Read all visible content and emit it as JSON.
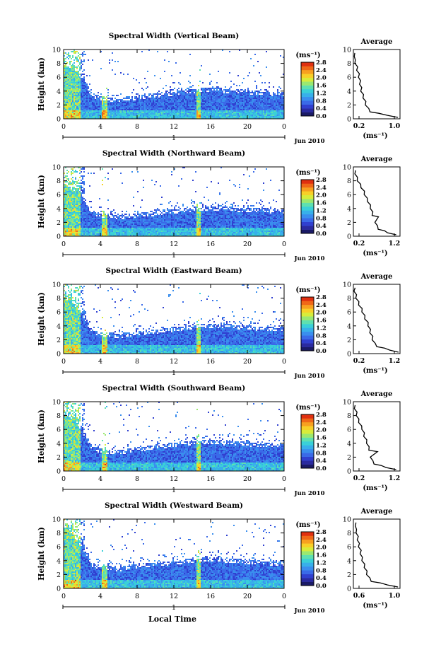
{
  "figure": {
    "x_title": "Local Time",
    "date_label": "Jun 2010",
    "colorbar_unit": "(ms⁻¹)",
    "profile_unit": "(ms⁻¹)",
    "colors": {
      "background": "#ffffff",
      "colormap": [
        "#1a1a66",
        "#2a2aa0",
        "#3040d0",
        "#3a6ae8",
        "#3a8eee",
        "#38b0ea",
        "#3ad0d8",
        "#5ee0b0",
        "#9ae870",
        "#d8ec3a",
        "#f8d028",
        "#f8a020",
        "#f06818",
        "#e03010"
      ]
    }
  },
  "chart_data": [
    {
      "type": "heatmap",
      "title": "Spectral Width (Vertical Beam)",
      "xlabel": "",
      "ylabel": "Height (km)",
      "xlim": [
        0,
        24
      ],
      "ylim": [
        0,
        10
      ],
      "x_ticks": [
        "0",
        "4",
        "8",
        "12",
        "16",
        "20",
        "0"
      ],
      "y_ticks": [
        "0",
        "2",
        "4",
        "6",
        "8",
        "10"
      ],
      "day_label": "1",
      "colorbar_ticks": [
        "0.0",
        "0.4",
        "0.8",
        "1.2",
        "1.6",
        "2.0",
        "2.4",
        "2.8"
      ],
      "echo_top_km": [
        [
          0,
          8.4
        ],
        [
          1,
          7.6
        ],
        [
          2,
          6.4
        ],
        [
          3,
          3.7
        ],
        [
          4,
          3.2
        ],
        [
          6,
          3.0
        ],
        [
          8,
          3.4
        ],
        [
          10,
          3.7
        ],
        [
          12,
          4.0
        ],
        [
          14,
          4.3
        ],
        [
          16,
          4.5
        ],
        [
          18,
          4.3
        ],
        [
          20,
          4.2
        ],
        [
          22,
          4.0
        ],
        [
          24,
          3.8
        ]
      ],
      "profile": {
        "title": "Average",
        "xlabel": "(ms⁻¹)",
        "ylabel": "",
        "xlim": [
          0.2,
          1.0
        ],
        "x_ticks": [
          "0.2",
          "1.0"
        ],
        "y_ticks": [
          "0",
          "2",
          "4",
          "6",
          "8",
          "10"
        ],
        "ylim": [
          0,
          10
        ],
        "points": [
          [
            0.95,
            0.2
          ],
          [
            0.8,
            0.5
          ],
          [
            0.62,
            0.8
          ],
          [
            0.5,
            1.0
          ],
          [
            0.45,
            1.5
          ],
          [
            0.42,
            2.0
          ],
          [
            0.4,
            2.5
          ],
          [
            0.38,
            3.0
          ],
          [
            0.36,
            3.5
          ],
          [
            0.34,
            4.0
          ],
          [
            0.33,
            4.5
          ],
          [
            0.32,
            5.0
          ],
          [
            0.31,
            5.5
          ],
          [
            0.3,
            6.0
          ],
          [
            0.29,
            6.5
          ],
          [
            0.27,
            7.0
          ],
          [
            0.26,
            7.5
          ],
          [
            0.24,
            8.0
          ],
          [
            0.22,
            8.5
          ],
          [
            0.23,
            9.0
          ],
          [
            0.21,
            9.5
          ]
        ]
      }
    },
    {
      "type": "heatmap",
      "title": "Spectral Width (Northward Beam)",
      "xlabel": "",
      "ylabel": "Height (km)",
      "xlim": [
        0,
        24
      ],
      "ylim": [
        0,
        10
      ],
      "x_ticks": [
        "0",
        "4",
        "8",
        "12",
        "16",
        "20",
        "0"
      ],
      "y_ticks": [
        "0",
        "2",
        "4",
        "6",
        "8",
        "10"
      ],
      "day_label": "1",
      "colorbar_ticks": [
        "0.0",
        "0.4",
        "0.8",
        "1.2",
        "1.6",
        "2.0",
        "2.4",
        "2.8"
      ],
      "echo_top_km": [
        [
          0,
          8.2
        ],
        [
          1,
          7.2
        ],
        [
          2,
          6.0
        ],
        [
          3,
          3.6
        ],
        [
          4,
          3.3
        ],
        [
          6,
          3.1
        ],
        [
          8,
          3.3
        ],
        [
          10,
          3.6
        ],
        [
          12,
          3.9
        ],
        [
          14,
          4.2
        ],
        [
          16,
          4.4
        ],
        [
          18,
          4.2
        ],
        [
          20,
          4.1
        ],
        [
          22,
          4.0
        ],
        [
          24,
          3.8
        ]
      ],
      "profile": {
        "title": "Average",
        "xlabel": "(ms⁻¹)",
        "ylabel": "",
        "xlim": [
          0.2,
          1.2
        ],
        "x_ticks": [
          "0.2",
          "1.2"
        ],
        "y_ticks": [
          "0",
          "2",
          "4",
          "6",
          "8",
          "10"
        ],
        "ylim": [
          0,
          10
        ],
        "points": [
          [
            1.1,
            0.2
          ],
          [
            0.95,
            0.5
          ],
          [
            0.85,
            0.8
          ],
          [
            0.75,
            1.0
          ],
          [
            0.7,
            1.5
          ],
          [
            0.68,
            2.0
          ],
          [
            0.72,
            2.8
          ],
          [
            0.62,
            3.0
          ],
          [
            0.6,
            3.5
          ],
          [
            0.58,
            4.0
          ],
          [
            0.55,
            4.5
          ],
          [
            0.52,
            5.0
          ],
          [
            0.48,
            5.5
          ],
          [
            0.45,
            6.0
          ],
          [
            0.42,
            6.5
          ],
          [
            0.38,
            7.0
          ],
          [
            0.34,
            7.5
          ],
          [
            0.3,
            8.0
          ],
          [
            0.27,
            8.5
          ],
          [
            0.25,
            9.0
          ],
          [
            0.23,
            9.5
          ]
        ]
      }
    },
    {
      "type": "heatmap",
      "title": "Spectral Width (Eastward Beam)",
      "xlabel": "",
      "ylabel": "Height (km)",
      "xlim": [
        0,
        24
      ],
      "ylim": [
        0,
        10
      ],
      "x_ticks": [
        "0",
        "4",
        "8",
        "12",
        "16",
        "20",
        "0"
      ],
      "y_ticks": [
        "0",
        "2",
        "4",
        "6",
        "8",
        "10"
      ],
      "day_label": "1",
      "colorbar_ticks": [
        "0.0",
        "0.4",
        "0.8",
        "1.2",
        "1.6",
        "2.0",
        "2.4",
        "2.8"
      ],
      "echo_top_km": [
        [
          0,
          8.6
        ],
        [
          1,
          7.8
        ],
        [
          2,
          6.0
        ],
        [
          3,
          3.5
        ],
        [
          4,
          3.1
        ],
        [
          6,
          2.9
        ],
        [
          8,
          3.2
        ],
        [
          10,
          3.5
        ],
        [
          12,
          3.8
        ],
        [
          14,
          4.1
        ],
        [
          16,
          4.3
        ],
        [
          18,
          4.2
        ],
        [
          20,
          4.0
        ],
        [
          22,
          3.9
        ],
        [
          24,
          3.8
        ]
      ],
      "profile": {
        "title": "Average",
        "xlabel": "(ms⁻¹)",
        "ylabel": "",
        "xlim": [
          0.2,
          1.2
        ],
        "x_ticks": [
          "0.2",
          "1.2"
        ],
        "y_ticks": [
          "0",
          "2",
          "4",
          "6",
          "8",
          "10"
        ],
        "ylim": [
          0,
          10
        ],
        "points": [
          [
            1.15,
            0.2
          ],
          [
            1.0,
            0.5
          ],
          [
            0.85,
            0.8
          ],
          [
            0.72,
            1.0
          ],
          [
            0.65,
            1.5
          ],
          [
            0.62,
            2.0
          ],
          [
            0.6,
            2.5
          ],
          [
            0.57,
            3.0
          ],
          [
            0.55,
            3.5
          ],
          [
            0.53,
            4.0
          ],
          [
            0.5,
            4.5
          ],
          [
            0.46,
            5.0
          ],
          [
            0.43,
            5.5
          ],
          [
            0.4,
            6.0
          ],
          [
            0.37,
            6.5
          ],
          [
            0.33,
            7.0
          ],
          [
            0.3,
            7.5
          ],
          [
            0.27,
            8.0
          ],
          [
            0.25,
            8.5
          ],
          [
            0.23,
            9.0
          ],
          [
            0.22,
            9.5
          ]
        ]
      }
    },
    {
      "type": "heatmap",
      "title": "Spectral Width (Southward Beam)",
      "xlabel": "",
      "ylabel": "Height (km)",
      "xlim": [
        0,
        24
      ],
      "ylim": [
        0,
        10
      ],
      "x_ticks": [
        "0",
        "4",
        "8",
        "12",
        "16",
        "20",
        "0"
      ],
      "y_ticks": [
        "0",
        "2",
        "4",
        "6",
        "8",
        "10"
      ],
      "day_label": "1",
      "colorbar_ticks": [
        "0.0",
        "0.4",
        "0.8",
        "1.2",
        "1.6",
        "2.0",
        "2.4",
        "2.8"
      ],
      "echo_top_km": [
        [
          0,
          8.8
        ],
        [
          1,
          7.9
        ],
        [
          2,
          6.2
        ],
        [
          3,
          3.6
        ],
        [
          4,
          3.2
        ],
        [
          6,
          3.0
        ],
        [
          8,
          3.4
        ],
        [
          10,
          3.8
        ],
        [
          12,
          4.1
        ],
        [
          14,
          4.4
        ],
        [
          16,
          4.5
        ],
        [
          18,
          4.3
        ],
        [
          20,
          4.2
        ],
        [
          22,
          4.0
        ],
        [
          24,
          3.9
        ]
      ],
      "profile": {
        "title": "Average",
        "xlabel": "(ms⁻¹)",
        "ylabel": "",
        "xlim": [
          0.2,
          1.2
        ],
        "x_ticks": [
          "0.2",
          "1.2"
        ],
        "y_ticks": [
          "0",
          "2",
          "4",
          "6",
          "8",
          "10"
        ],
        "ylim": [
          0,
          10
        ],
        "points": [
          [
            1.1,
            0.2
          ],
          [
            0.92,
            0.5
          ],
          [
            0.78,
            0.8
          ],
          [
            0.66,
            1.0
          ],
          [
            0.6,
            1.5
          ],
          [
            0.58,
            2.0
          ],
          [
            0.7,
            2.8
          ],
          [
            0.55,
            3.0
          ],
          [
            0.52,
            3.5
          ],
          [
            0.5,
            4.0
          ],
          [
            0.47,
            4.5
          ],
          [
            0.44,
            5.0
          ],
          [
            0.42,
            5.5
          ],
          [
            0.4,
            6.0
          ],
          [
            0.36,
            6.5
          ],
          [
            0.33,
            7.0
          ],
          [
            0.3,
            7.5
          ],
          [
            0.28,
            8.0
          ],
          [
            0.26,
            8.5
          ],
          [
            0.24,
            9.0
          ],
          [
            0.22,
            9.5
          ]
        ]
      }
    },
    {
      "type": "heatmap",
      "title": "Spectral Width (Westward Beam)",
      "xlabel": "Local Time",
      "ylabel": "Height (km)",
      "xlim": [
        0,
        24
      ],
      "ylim": [
        0,
        10
      ],
      "x_ticks": [
        "0",
        "4",
        "8",
        "12",
        "16",
        "20",
        "0"
      ],
      "y_ticks": [
        "0",
        "2",
        "4",
        "6",
        "8",
        "10"
      ],
      "day_label": "1",
      "colorbar_ticks": [
        "0.0",
        "0.4",
        "0.8",
        "1.2",
        "1.6",
        "2.0",
        "2.4",
        "2.8"
      ],
      "echo_top_km": [
        [
          0,
          9.4
        ],
        [
          1,
          8.2
        ],
        [
          2,
          6.4
        ],
        [
          3,
          3.8
        ],
        [
          4,
          3.3
        ],
        [
          6,
          3.1
        ],
        [
          8,
          3.5
        ],
        [
          10,
          3.8
        ],
        [
          12,
          4.0
        ],
        [
          14,
          4.3
        ],
        [
          16,
          4.5
        ],
        [
          18,
          4.3
        ],
        [
          20,
          4.1
        ],
        [
          22,
          3.9
        ],
        [
          24,
          3.8
        ]
      ],
      "profile": {
        "title": "Average",
        "xlabel": "(ms⁻¹)",
        "ylabel": "",
        "xlim": [
          0.2,
          1.0
        ],
        "x_ticks": [
          "0.6",
          "1.0"
        ],
        "y_ticks": [
          "0",
          "2",
          "4",
          "6",
          "8",
          "10"
        ],
        "ylim": [
          0,
          10
        ],
        "points": [
          [
            0.95,
            0.2
          ],
          [
            0.8,
            0.5
          ],
          [
            0.65,
            0.8
          ],
          [
            0.52,
            1.0
          ],
          [
            0.47,
            1.5
          ],
          [
            0.44,
            2.0
          ],
          [
            0.42,
            2.5
          ],
          [
            0.4,
            3.0
          ],
          [
            0.38,
            3.5
          ],
          [
            0.36,
            4.0
          ],
          [
            0.34,
            4.5
          ],
          [
            0.33,
            5.0
          ],
          [
            0.32,
            5.5
          ],
          [
            0.3,
            6.0
          ],
          [
            0.29,
            6.5
          ],
          [
            0.28,
            7.0
          ],
          [
            0.27,
            7.5
          ],
          [
            0.26,
            8.0
          ],
          [
            0.24,
            8.5
          ],
          [
            0.25,
            9.0
          ],
          [
            0.23,
            9.5
          ]
        ]
      }
    }
  ]
}
